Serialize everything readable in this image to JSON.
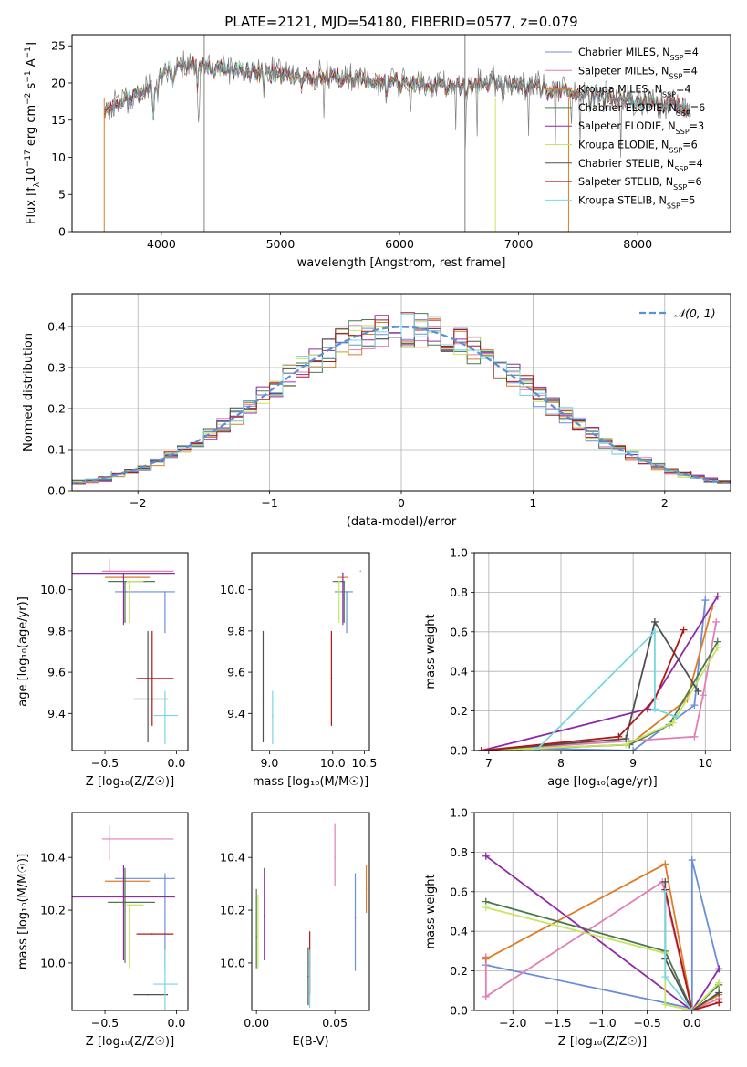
{
  "chart_data": [
    {
      "id": "spectrum",
      "type": "line",
      "title": "PLATE=2121, MJD=54180, FIBERID=0577, z=0.079",
      "xlabel": "wavelength [Angstrom, rest frame]",
      "ylabel_parts": [
        "Flux [f",
        "λ",
        "10",
        "−17",
        " erg cm",
        "−2",
        " s",
        "−1",
        " A",
        "−1",
        "]"
      ],
      "xlim": [
        3250,
        8780
      ],
      "ylim": [
        0,
        26.5
      ],
      "xticks": [
        4000,
        5000,
        6000,
        7000,
        8000
      ],
      "yticks": [
        0,
        5,
        10,
        15,
        20,
        25
      ],
      "x_range_data": [
        3520,
        8450
      ],
      "legend_position": "upper-right",
      "series": [
        {
          "name": "Chabrier MILES, N",
          "sub": "SSP",
          "suffix": "=4",
          "color": "#6a8ed8"
        },
        {
          "name": "Salpeter MILES, N",
          "sub": "SSP",
          "suffix": "=4",
          "color": "#e27fb6"
        },
        {
          "name": "Kroupa MILES, N",
          "sub": "SSP",
          "suffix": "=4",
          "color": "#e07b26"
        },
        {
          "name": "Chabrier ELODIE, N",
          "sub": "SSP",
          "suffix": "=6",
          "color": "#4a7a4f"
        },
        {
          "name": "Salpeter ELODIE, N",
          "sub": "SSP",
          "suffix": "=3",
          "color": "#9029a6"
        },
        {
          "name": "Kroupa ELODIE, N",
          "sub": "SSP",
          "suffix": "=6",
          "color": "#c6e65e"
        },
        {
          "name": "Chabrier STELIB, N",
          "sub": "SSP",
          "suffix": "=4",
          "color": "#505050"
        },
        {
          "name": "Salpeter STELIB, N",
          "sub": "SSP",
          "suffix": "=6",
          "color": "#b01818"
        },
        {
          "name": "Kroupa STELIB, N",
          "sub": "SSP",
          "suffix": "=5",
          "color": "#78d6e0"
        }
      ]
    },
    {
      "id": "residuals",
      "type": "histogram",
      "xlabel": "(data-model)/error",
      "ylabel": "Normed distribution",
      "xlim": [
        -2.5,
        2.5
      ],
      "ylim": [
        0,
        0.48
      ],
      "xticks": [
        -2,
        -1,
        0,
        1,
        2
      ],
      "yticks": [
        0.0,
        0.1,
        0.2,
        0.3,
        0.4
      ],
      "grid": true,
      "bin_width": 0.1,
      "reference_curve": {
        "name": "𝒩(0, 1)",
        "color": "#5b8fd6",
        "style": "dashed"
      },
      "legend_position": "upper-right"
    },
    {
      "id": "age-vs-z",
      "type": "scatter",
      "xlabel": "Z [log₁₀(Z/Z☉)]",
      "ylabel": "age  [log₁₀(age/yr)]",
      "xlim": [
        -0.73,
        0.08
      ],
      "ylim": [
        9.22,
        10.18
      ],
      "xticks": [
        -0.5,
        0.0
      ],
      "yticks": [
        9.4,
        9.6,
        9.8,
        10.0
      ],
      "points": [
        {
          "x": -0.08,
          "y": 9.99,
          "xerr": [
            0.35,
            0.07
          ],
          "yerr": [
            0.2,
            0.0
          ],
          "color": "#6a8ed8"
        },
        {
          "x": -0.47,
          "y": 10.09,
          "xerr": [
            0.05,
            0.45
          ],
          "yerr": [
            0.0,
            0.06
          ],
          "color": "#e27fb6"
        },
        {
          "x": -0.37,
          "y": 10.06,
          "xerr": [
            0.13,
            0.19
          ],
          "yerr": [
            0.0,
            0.0
          ],
          "color": "#e07b26"
        },
        {
          "x": -0.36,
          "y": 10.04,
          "xerr": [
            0.12,
            0.21
          ],
          "yerr": [
            0.2,
            0.0
          ],
          "color": "#4a7a4f"
        },
        {
          "x": -0.37,
          "y": 10.08,
          "xerr": [
            0.36,
            0.36
          ],
          "yerr": [
            0.25,
            0.0
          ],
          "color": "#9029a6"
        },
        {
          "x": -0.33,
          "y": 10.04,
          "xerr": [
            0.02,
            0.1
          ],
          "yerr": [
            0.2,
            0.0
          ],
          "color": "#c6e65e"
        },
        {
          "x": -0.2,
          "y": 9.47,
          "xerr": [
            0.1,
            0.14
          ],
          "yerr": [
            0.21,
            0.33
          ],
          "color": "#505050"
        },
        {
          "x": -0.17,
          "y": 9.57,
          "xerr": [
            0.11,
            0.15
          ],
          "yerr": [
            0.23,
            0.23
          ],
          "color": "#b01818"
        },
        {
          "x": -0.08,
          "y": 9.39,
          "xerr": [
            0.08,
            0.09
          ],
          "yerr": [
            0.14,
            0.12
          ],
          "color": "#78d6e0"
        }
      ]
    },
    {
      "id": "age-vs-mass",
      "type": "scatter",
      "xlabel": "mass [log₁₀(M/M☉)]",
      "ylabel": "",
      "xlim": [
        8.72,
        10.58
      ],
      "ylim": [
        9.22,
        10.18
      ],
      "xticks": [
        9.0,
        10.0,
        10.5
      ],
      "yticks": [
        9.4,
        9.6,
        9.8,
        10.0
      ],
      "points": [
        {
          "x": 10.22,
          "y": 9.99,
          "xerr": [
            0.19,
            0.1
          ],
          "yerr": [
            0.2,
            0.0
          ],
          "color": "#6a8ed8"
        },
        {
          "x": 10.44,
          "y": 10.09,
          "xerr": [
            0.0,
            0.0
          ],
          "yerr": [
            0.0,
            0.0
          ],
          "color": "#e27fb6"
        },
        {
          "x": 10.24,
          "y": 10.06,
          "xerr": [
            0.16,
            0.0
          ],
          "yerr": [
            0.0,
            0.0
          ],
          "color": "#e07b26"
        },
        {
          "x": 10.18,
          "y": 10.04,
          "xerr": [
            0.18,
            0.0
          ],
          "yerr": [
            0.2,
            0.0
          ],
          "color": "#4a7a4f"
        },
        {
          "x": 10.16,
          "y": 10.08,
          "xerr": [
            0.0,
            0.0
          ],
          "yerr": [
            0.25,
            0.0
          ],
          "color": "#9029a6"
        },
        {
          "x": 10.1,
          "y": 10.04,
          "xerr": [
            0.0,
            0.0
          ],
          "yerr": [
            0.2,
            0.0
          ],
          "color": "#c6e65e"
        },
        {
          "x": 8.9,
          "y": 9.47,
          "xerr": [
            0.0,
            0.0
          ],
          "yerr": [
            0.21,
            0.33
          ],
          "color": "#505050"
        },
        {
          "x": 9.98,
          "y": 9.57,
          "xerr": [
            0.0,
            0.0
          ],
          "yerr": [
            0.23,
            0.23
          ],
          "color": "#b01818"
        },
        {
          "x": 9.05,
          "y": 9.39,
          "xerr": [
            0.0,
            0.0
          ],
          "yerr": [
            0.14,
            0.12
          ],
          "color": "#78d6e0"
        }
      ]
    },
    {
      "id": "mass-weight-vs-age",
      "type": "line",
      "xlabel": "age  [log₁₀(age/yr)]",
      "ylabel": "mass weight",
      "xlim": [
        6.8,
        10.35
      ],
      "ylim": [
        0,
        1
      ],
      "xticks": [
        7,
        8,
        9,
        10
      ],
      "yticks": [
        0.0,
        0.2,
        0.4,
        0.6,
        0.8,
        1.0
      ],
      "grid": true,
      "series": [
        {
          "color": "#6a8ed8",
          "x": [
            7.7,
            9.0,
            9.85,
            10.0
          ],
          "y": [
            0.01,
            0.0,
            0.23,
            0.76
          ]
        },
        {
          "color": "#e27fb6",
          "x": [
            6.9,
            9.85,
            9.97,
            10.15
          ],
          "y": [
            0.0,
            0.07,
            0.28,
            0.65
          ]
        },
        {
          "color": "#e07b26",
          "x": [
            6.9,
            8.95,
            9.75,
            10.1
          ],
          "y": [
            0.0,
            0.03,
            0.26,
            0.73
          ]
        },
        {
          "color": "#4a7a4f",
          "x": [
            6.9,
            8.95,
            9.5,
            10.17
          ],
          "y": [
            0.0,
            0.03,
            0.13,
            0.55
          ]
        },
        {
          "color": "#9029a6",
          "x": [
            6.9,
            9.2,
            10.17
          ],
          "y": [
            0.0,
            0.21,
            0.78
          ]
        },
        {
          "color": "#c6e65e",
          "x": [
            6.9,
            8.9,
            9.55,
            10.17
          ],
          "y": [
            0.0,
            0.03,
            0.14,
            0.52
          ]
        },
        {
          "color": "#505050",
          "x": [
            6.9,
            8.9,
            9.3,
            9.9
          ],
          "y": [
            0.0,
            0.06,
            0.65,
            0.3
          ]
        },
        {
          "color": "#b01818",
          "x": [
            6.9,
            8.8,
            9.3,
            9.7
          ],
          "y": [
            0.0,
            0.07,
            0.26,
            0.61
          ]
        },
        {
          "color": "#78d6e0",
          "x": [
            7.65,
            9.3,
            9.3,
            9.6
          ],
          "y": [
            0.0,
            0.6,
            0.21,
            0.17
          ]
        }
      ]
    },
    {
      "id": "mass-vs-z",
      "type": "scatter",
      "xlabel": "Z [log₁₀(Z/Z☉)]",
      "ylabel": "mass [log₁₀(M/M☉)]",
      "xlim": [
        -0.73,
        0.08
      ],
      "ylim": [
        9.82,
        10.57
      ],
      "xticks": [
        -0.5,
        0.0
      ],
      "yticks": [
        10.0,
        10.2,
        10.4
      ],
      "points": [
        {
          "x": -0.08,
          "y": 10.32,
          "xerr": [
            0.35,
            0.07
          ],
          "yerr": [
            0.35,
            0.02
          ],
          "color": "#6a8ed8"
        },
        {
          "x": -0.47,
          "y": 10.47,
          "xerr": [
            0.05,
            0.45
          ],
          "yerr": [
            0.08,
            0.05
          ],
          "color": "#e27fb6"
        },
        {
          "x": -0.37,
          "y": 10.31,
          "xerr": [
            0.13,
            0.19
          ],
          "yerr": [
            0.1,
            0.0
          ],
          "color": "#e07b26"
        },
        {
          "x": -0.36,
          "y": 10.23,
          "xerr": [
            0.12,
            0.21
          ],
          "yerr": [
            0.23,
            0.13
          ],
          "color": "#4a7a4f"
        },
        {
          "x": -0.37,
          "y": 10.25,
          "xerr": [
            0.36,
            0.36
          ],
          "yerr": [
            0.24,
            0.12
          ],
          "color": "#9029a6"
        },
        {
          "x": -0.33,
          "y": 10.22,
          "xerr": [
            0.02,
            0.1
          ],
          "yerr": [
            0.24,
            0.0
          ],
          "color": "#c6e65e"
        },
        {
          "x": -0.2,
          "y": 9.88,
          "xerr": [
            0.1,
            0.14
          ],
          "yerr": [
            0.0,
            0.0
          ],
          "color": "#505050"
        },
        {
          "x": -0.17,
          "y": 10.11,
          "xerr": [
            0.11,
            0.15
          ],
          "yerr": [
            0.0,
            0.0
          ],
          "color": "#b01818"
        },
        {
          "x": -0.08,
          "y": 9.92,
          "xerr": [
            0.08,
            0.09
          ],
          "yerr": [
            0.13,
            0.13
          ],
          "color": "#78d6e0"
        }
      ]
    },
    {
      "id": "mass-vs-ebv",
      "type": "scatter",
      "xlabel": "E(B-V)",
      "ylabel": "",
      "xlim": [
        -0.003,
        0.072
      ],
      "ylim": [
        9.82,
        10.57
      ],
      "xticks": [
        0.0,
        0.05
      ],
      "yticks": [
        10.0,
        10.2,
        10.4
      ],
      "points": [
        {
          "x": 0.063,
          "y": 10.17,
          "yerr": [
            0.2,
            0.17
          ],
          "color": "#6a8ed8"
        },
        {
          "x": 0.05,
          "y": 10.4,
          "yerr": [
            0.11,
            0.13
          ],
          "color": "#e27fb6"
        },
        {
          "x": 0.07,
          "y": 10.28,
          "yerr": [
            0.09,
            0.09
          ],
          "color": "#e07b26"
        },
        {
          "x": 0.0,
          "y": 10.1,
          "yerr": [
            0.12,
            0.18
          ],
          "color": "#4a7a4f"
        },
        {
          "x": 0.005,
          "y": 10.18,
          "yerr": [
            0.17,
            0.18
          ],
          "color": "#9029a6"
        },
        {
          "x": 0.001,
          "y": 10.12,
          "yerr": [
            0.14,
            0.14
          ],
          "color": "#c6e65e"
        },
        {
          "x": 0.033,
          "y": 9.95,
          "yerr": [
            0.11,
            0.11
          ],
          "color": "#505050"
        },
        {
          "x": 0.034,
          "y": 10.0,
          "yerr": [
            0.12,
            0.12
          ],
          "color": "#b01818"
        },
        {
          "x": 0.034,
          "y": 9.94,
          "yerr": [
            0.11,
            0.11
          ],
          "color": "#78d6e0"
        }
      ]
    },
    {
      "id": "mass-weight-vs-z",
      "type": "line",
      "xlabel": "Z [log₁₀(Z/Z☉)]",
      "ylabel": "mass weight",
      "xlim": [
        -2.43,
        0.43
      ],
      "ylim": [
        0,
        1
      ],
      "xticks": [
        -2.0,
        -1.5,
        -1.0,
        -0.5,
        0.0
      ],
      "yticks": [
        0.0,
        0.2,
        0.4,
        0.6,
        0.8,
        1.0
      ],
      "grid": true,
      "series": [
        {
          "color": "#6a8ed8",
          "x": [
            -2.3,
            0.0,
            0.0,
            0.3
          ],
          "y": [
            0.23,
            0.01,
            0.76,
            0.21
          ]
        },
        {
          "color": "#e27fb6",
          "x": [
            -2.3,
            -2.3,
            -0.33,
            0.0,
            0.3
          ],
          "y": [
            0.27,
            0.07,
            0.65,
            0.0,
            0.06
          ]
        },
        {
          "color": "#e07b26",
          "x": [
            -2.3,
            -0.3,
            0.0,
            0.3
          ],
          "y": [
            0.26,
            0.74,
            0.0,
            0.08
          ]
        },
        {
          "color": "#4a7a4f",
          "x": [
            -2.3,
            -0.3,
            0.0,
            0.3
          ],
          "y": [
            0.55,
            0.3,
            0.0,
            0.13
          ]
        },
        {
          "color": "#9029a6",
          "x": [
            -2.3,
            0.0,
            0.3
          ],
          "y": [
            0.78,
            0.0,
            0.21
          ]
        },
        {
          "color": "#c6e65e",
          "x": [
            -2.3,
            -0.3,
            -0.3,
            0.0,
            0.3
          ],
          "y": [
            0.52,
            0.29,
            0.03,
            0.0,
            0.14
          ]
        },
        {
          "color": "#505050",
          "x": [
            -0.3,
            -0.3,
            0.0,
            0.3
          ],
          "y": [
            0.65,
            0.26,
            0.0,
            0.09
          ]
        },
        {
          "color": "#b01818",
          "x": [
            -0.3,
            0.0,
            0.3
          ],
          "y": [
            0.61,
            0.0,
            0.04
          ]
        },
        {
          "color": "#78d6e0",
          "x": [
            -0.3,
            -0.3,
            0.0
          ],
          "y": [
            0.6,
            0.17,
            0.0
          ]
        }
      ]
    }
  ]
}
